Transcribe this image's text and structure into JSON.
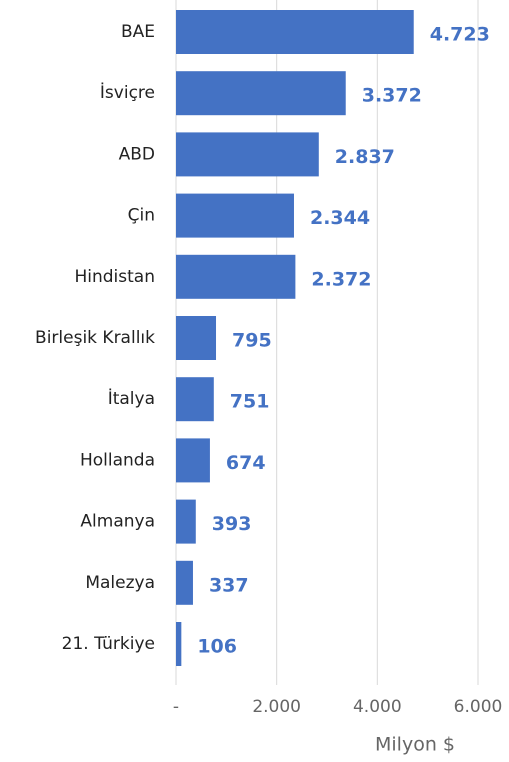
{
  "chart_data": {
    "type": "barh",
    "categories": [
      "BAE",
      "İsviçre",
      "ABD",
      "Çin",
      "Hindistan",
      "Birleşik Krallık",
      "İtalya",
      "Hollanda",
      "Almanya",
      "Malezya",
      "21. Türkiye"
    ],
    "values": [
      4723,
      3372,
      2837,
      2344,
      2372,
      795,
      751,
      674,
      393,
      337,
      106
    ],
    "value_labels": [
      "4.723",
      "3.372",
      "2.837",
      "2.344",
      "2.372",
      "795",
      "751",
      "674",
      "393",
      "337",
      "106"
    ],
    "color": "#4472c4",
    "xlim": [
      0,
      6000
    ],
    "xticks": [
      {
        "value": 0,
        "label": "-"
      },
      {
        "value": 2000,
        "label": "2.000"
      },
      {
        "value": 4000,
        "label": "4.000"
      },
      {
        "value": 6000,
        "label": "6.000"
      }
    ],
    "xlabel": "Milyon $",
    "grid": true
  }
}
